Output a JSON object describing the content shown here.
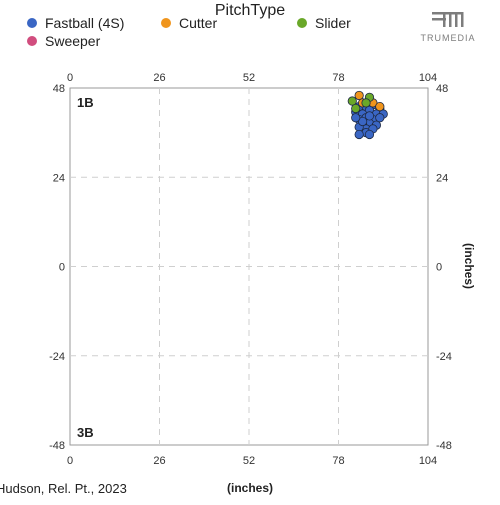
{
  "legend": {
    "title": "PitchType",
    "items": [
      {
        "label": "Fastball (4S)",
        "color": "#3a66c4"
      },
      {
        "label": "Cutter",
        "color": "#f0951c"
      },
      {
        "label": "Slider",
        "color": "#6aa829"
      },
      {
        "label": "Sweeper",
        "color": "#d14d7e"
      }
    ]
  },
  "brand": {
    "name": "TRUMEDIA",
    "icon": "trumedia-logo-icon"
  },
  "footer": {
    "caption": "Hudson, Rel. Pt., 2023"
  },
  "chart_data": {
    "type": "scatter",
    "xlim": [
      0,
      104
    ],
    "ylim": [
      -48,
      48
    ],
    "x_ticks": [
      0,
      26,
      52,
      78,
      104
    ],
    "y_ticks": [
      48,
      24,
      0,
      -24,
      -48
    ],
    "xlabel": "(inches)",
    "ylabel": "(inches)",
    "grid": true,
    "annotations": [
      {
        "text": "1B",
        "position": "top-left"
      },
      {
        "text": "3B",
        "position": "bottom-left"
      }
    ],
    "series": [
      {
        "name": "Fastball (4S)",
        "color": "#3a66c4",
        "points": [
          [
            84,
            43
          ],
          [
            86,
            43
          ],
          [
            88,
            43.5
          ],
          [
            90,
            42.5
          ],
          [
            87,
            42
          ],
          [
            83,
            41.5
          ],
          [
            85,
            41
          ],
          [
            89,
            41
          ],
          [
            91,
            41
          ],
          [
            86,
            40
          ],
          [
            84,
            39.5
          ],
          [
            88,
            39.5
          ],
          [
            87,
            38.5
          ],
          [
            85,
            38
          ],
          [
            89,
            38
          ],
          [
            86,
            37
          ],
          [
            84,
            37.5
          ],
          [
            88,
            37
          ],
          [
            86,
            36
          ],
          [
            84,
            35.5
          ],
          [
            87,
            35.5
          ],
          [
            85,
            39
          ],
          [
            90,
            40
          ],
          [
            87,
            40.5
          ],
          [
            83,
            40
          ]
        ]
      },
      {
        "name": "Cutter",
        "color": "#f0951c",
        "points": [
          [
            84,
            46
          ],
          [
            88,
            44
          ],
          [
            90,
            43
          ],
          [
            85,
            44
          ]
        ]
      },
      {
        "name": "Slider",
        "color": "#6aa829",
        "points": [
          [
            82,
            44.5
          ],
          [
            87,
            45.5
          ],
          [
            83,
            42.5
          ],
          [
            86,
            44
          ]
        ]
      },
      {
        "name": "Sweeper",
        "color": "#d14d7e",
        "points": []
      }
    ]
  }
}
